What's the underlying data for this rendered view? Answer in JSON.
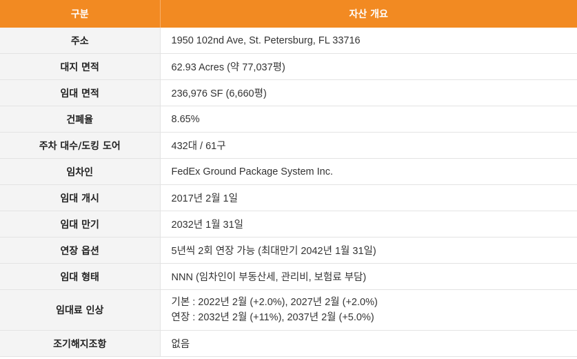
{
  "header": {
    "col1": "구분",
    "col2": "자산 개요"
  },
  "rows": [
    {
      "label": "주소",
      "value": "1950 102nd Ave, St. Petersburg, FL 33716"
    },
    {
      "label": "대지 면적",
      "value": "62.93 Acres (약 77,037평)"
    },
    {
      "label": "임대 면적",
      "value": "236,976 SF (6,660평)"
    },
    {
      "label": "건폐율",
      "value": "8.65%"
    },
    {
      "label": "주차 대수/도킹 도어",
      "value": "432대 / 61구"
    },
    {
      "label": "임차인",
      "value": "FedEx Ground Package System Inc."
    },
    {
      "label": "임대 개시",
      "value": "2017년 2월 1일"
    },
    {
      "label": "임대 만기",
      "value": "2032년 1월 31일"
    },
    {
      "label": "연장 옵션",
      "value": "5년씩 2회 연장 가능 (최대만기 2042년 1월 31일)"
    },
    {
      "label": "임대 형태",
      "value": "NNN (임차인이 부동산세, 관리비, 보험료 부담)"
    },
    {
      "label": "임대료 인상",
      "value_line1": "기본 : 2022년 2월 (+2.0%), 2027년 2월 (+2.0%)",
      "value_line2": "연장 : 2032년 2월 (+11%), 2037년 2월 (+5.0%)"
    },
    {
      "label": "조기해지조항",
      "value": "없음"
    }
  ],
  "colors": {
    "header_bg": "#f28a22",
    "label_bg": "#f4f4f4",
    "border": "#e3e3e3"
  }
}
